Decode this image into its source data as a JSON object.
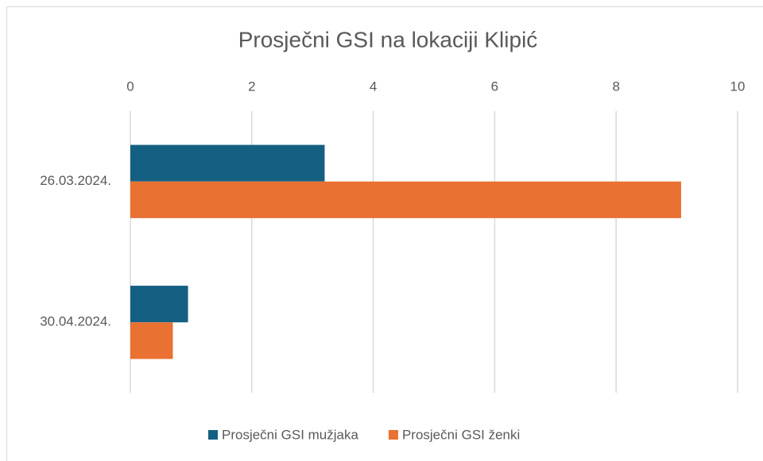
{
  "chart_data": {
    "type": "bar",
    "orientation": "horizontal",
    "title": "Prosječni GSI na lokaciji Klipić",
    "categories": [
      "26.03.2024.",
      "30.04.2024."
    ],
    "series": [
      {
        "name": "Prosječni GSI mužjaka",
        "color": "#156082",
        "values": [
          3.2,
          0.95
        ]
      },
      {
        "name": "Prosječni GSI ženki",
        "color": "#e97132",
        "values": [
          9.07,
          0.7
        ]
      }
    ],
    "xlim": [
      0,
      10
    ],
    "xticks": [
      0,
      2,
      4,
      6,
      8,
      10
    ],
    "grid": true
  }
}
